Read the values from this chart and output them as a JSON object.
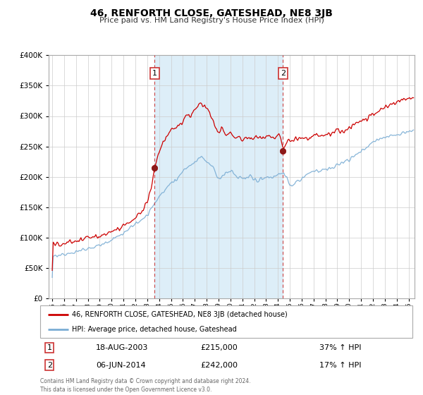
{
  "title": "46, RENFORTH CLOSE, GATESHEAD, NE8 3JB",
  "subtitle": "Price paid vs. HM Land Registry's House Price Index (HPI)",
  "legend_line1": "46, RENFORTH CLOSE, GATESHEAD, NE8 3JB (detached house)",
  "legend_line2": "HPI: Average price, detached house, Gateshead",
  "sale1_date": "18-AUG-2003",
  "sale1_price": "£215,000",
  "sale1_hpi": "37% ↑ HPI",
  "sale1_year": 2003.63,
  "sale1_value": 215000,
  "sale2_date": "06-JUN-2014",
  "sale2_price": "£242,000",
  "sale2_hpi": "17% ↑ HPI",
  "sale2_year": 2014.42,
  "sale2_value": 242000,
  "red_line_color": "#cc0000",
  "blue_line_color": "#7aadd4",
  "shaded_region_color": "#ddeef8",
  "grid_color": "#cccccc",
  "footer_text": "Contains HM Land Registry data © Crown copyright and database right 2024.\nThis data is licensed under the Open Government Licence v3.0.",
  "ylim": [
    0,
    400000
  ],
  "yticks": [
    0,
    50000,
    100000,
    150000,
    200000,
    250000,
    300000,
    350000,
    400000
  ],
  "xlim_start": 1994.7,
  "xlim_end": 2025.5
}
